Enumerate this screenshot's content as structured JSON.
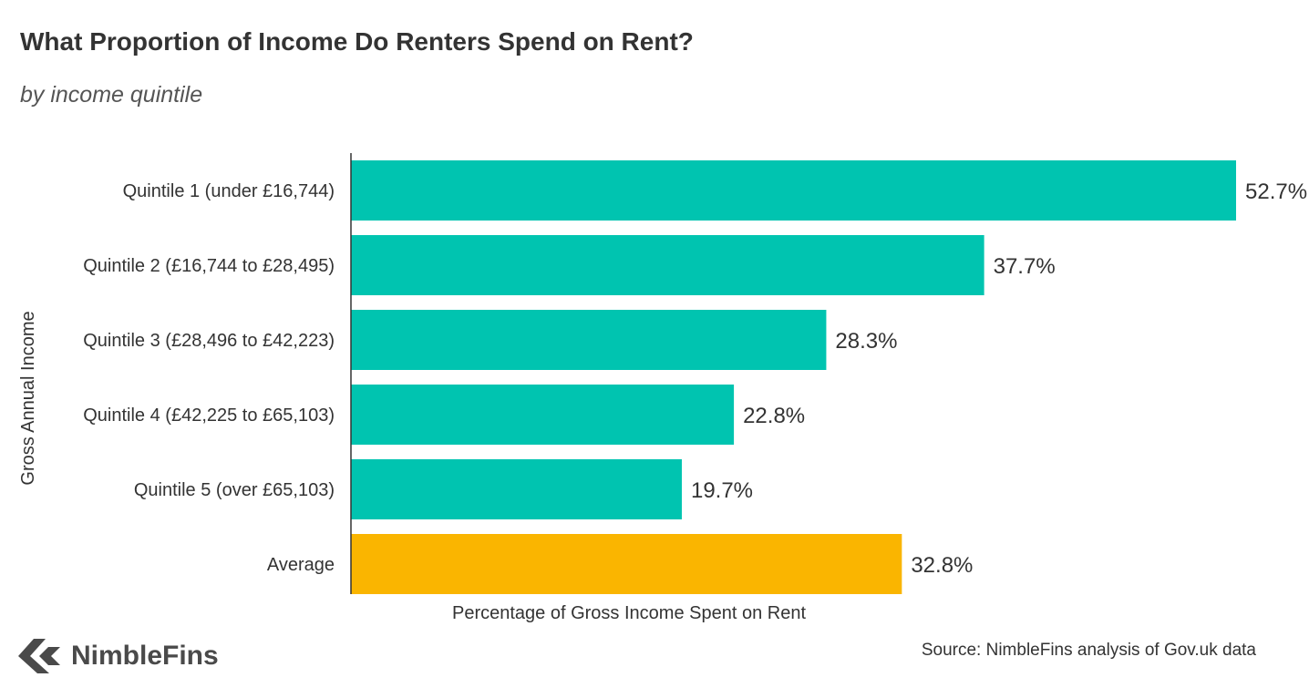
{
  "chart_data": {
    "type": "bar",
    "orientation": "horizontal",
    "title": "What Proportion of Income Do Renters Spend on Rent?",
    "subtitle": "by income quintile",
    "xlabel": "Percentage of Gross Income Spent on Rent",
    "ylabel": "Gross Annual Income",
    "categories": [
      "Quintile 1 (under £16,744)",
      "Quintile 2 (£16,744 to £28,495)",
      "Quintile 3 (£28,496 to £42,223)",
      "Quintile 4 (£42,225 to £65,103)",
      "Quintile 5 (over £65,103)",
      "Average"
    ],
    "values": [
      52.7,
      37.7,
      28.3,
      22.8,
      19.7,
      32.8
    ],
    "value_labels": [
      "52.7%",
      "37.7%",
      "28.3%",
      "22.8%",
      "19.7%",
      "32.8%"
    ],
    "colors": [
      "#00c4b0",
      "#00c4b0",
      "#00c4b0",
      "#00c4b0",
      "#00c4b0",
      "#fab500"
    ],
    "xlim": [
      0,
      52.7
    ],
    "grid": false,
    "legend": "none"
  },
  "footer": {
    "brand": "NimbleFins",
    "brand_icon": "nimblefins-logo-icon",
    "source": "Source: NimbleFins analysis of Gov.uk data"
  }
}
